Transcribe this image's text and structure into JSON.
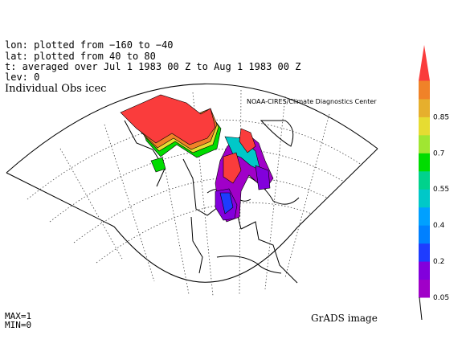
{
  "header": {
    "lon": "lon: plotted from −160 to −40",
    "lat": "lat: plotted from 40 to 80",
    "time": "t: averaged over Jul 1 1983 00 Z to Aug 1 1983 00 Z",
    "lev": "lev: 0"
  },
  "title": "Individual Obs icec",
  "credit": "NOAA-CIRES/Climate Diagnostics Center",
  "footer": {
    "max": "MAX=1",
    "min": "MIN=0",
    "grads": "GrADS image"
  },
  "colorbar": {
    "colors": [
      "#a000c8",
      "#8200dc",
      "#1e3cff",
      "#0080ff",
      "#00a0ff",
      "#00c8c8",
      "#00d28c",
      "#00dc00",
      "#a0e632",
      "#e6dc32",
      "#e6af2d",
      "#f08228",
      "#fa3c3c"
    ],
    "labels": [
      "0.05",
      "0.2",
      "0.4",
      "0.55",
      "0.7",
      "0.85"
    ]
  }
}
